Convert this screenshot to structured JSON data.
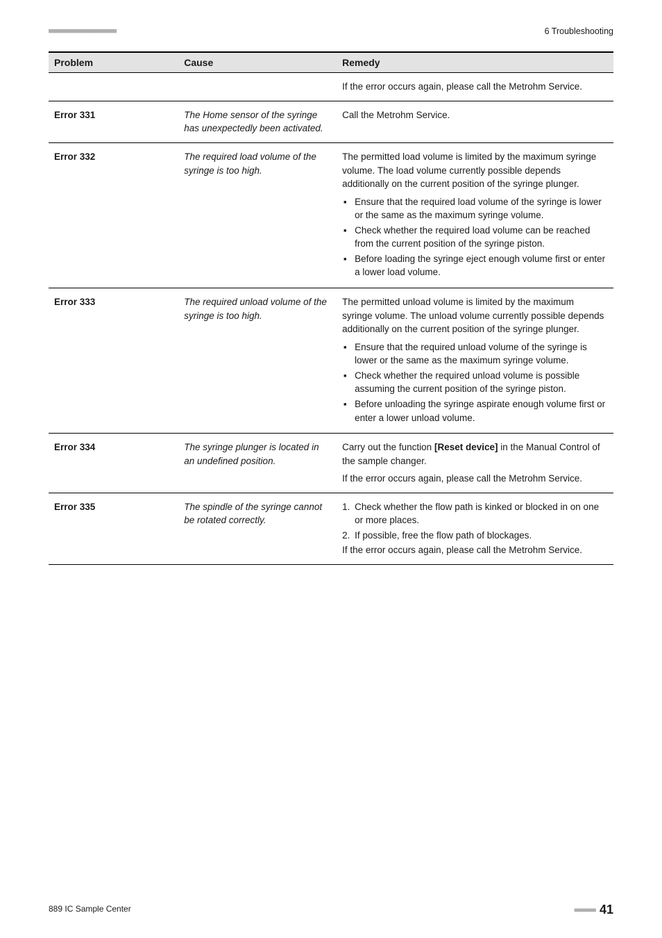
{
  "header": {
    "dots_left": "■■■■■■■■■■■■■■■■■■■■■■",
    "chapter": "6 Troubleshooting"
  },
  "tableHeaders": {
    "problem": "Problem",
    "cause": "Cause",
    "remedy": "Remedy"
  },
  "rows": [
    {
      "problem": "",
      "cause": "",
      "remedy": [
        {
          "type": "para",
          "text": "If the error occurs again, please call the Metrohm Service."
        }
      ]
    },
    {
      "problem": "Error 331",
      "cause": "The Home sensor of the syringe has unexpectedly been activated.",
      "remedy": [
        {
          "type": "para",
          "text": "Call the Metrohm Service."
        }
      ]
    },
    {
      "problem": "Error 332",
      "cause": "The required load volume of the syringe is too high.",
      "remedy": [
        {
          "type": "para",
          "text": "The permitted load volume is limited by the maximum syringe volume. The load volume currently possible depends additionally on the current position of the syringe plunger."
        },
        {
          "type": "bullets",
          "items": [
            "Ensure that the required load volume of the syringe is lower or the same as the maximum syringe volume.",
            "Check whether the required load volume can be reached from the current position of the syringe piston.",
            "Before loading the syringe eject enough volume first or enter a lower load volume."
          ]
        }
      ]
    },
    {
      "problem": "Error 333",
      "cause": "The required unload volume of the syringe is too high.",
      "remedy": [
        {
          "type": "para",
          "text": "The permitted unload volume is limited by the maximum syringe volume. The unload volume currently possible depends additionally on the current position of the syringe plunger."
        },
        {
          "type": "bullets",
          "items": [
            "Ensure that the required unload volume of the syringe is lower or the same as the maximum syringe volume.",
            "Check whether the required unload volume is possible assuming the current position of the syringe piston.",
            "Before unloading the syringe aspirate enough volume first or enter a lower unload volume."
          ]
        }
      ]
    },
    {
      "problem": "Error 334",
      "cause": "The syringe plunger is located in an undefined position.",
      "remedy": [
        {
          "type": "para_rich",
          "segments": [
            {
              "text": "Carry out the function "
            },
            {
              "text": "[Reset device]",
              "bold": true
            },
            {
              "text": " in the Manual Control of the sample changer."
            }
          ]
        },
        {
          "type": "para",
          "text": "If the error occurs again, please call the Metrohm Service."
        }
      ]
    },
    {
      "problem": "Error 335",
      "cause": "The spindle of the syringe cannot be rotated correctly.",
      "remedy": [
        {
          "type": "numbered",
          "items": [
            "Check whether the flow path is kinked or blocked in on one or more places.",
            "If possible, free the flow path of blockages."
          ]
        },
        {
          "type": "para",
          "text": "If the error occurs again, please call the Metrohm Service."
        }
      ]
    }
  ],
  "footer": {
    "left": "889 IC Sample Center",
    "dots": "■■■■■■■■",
    "page": "41"
  }
}
